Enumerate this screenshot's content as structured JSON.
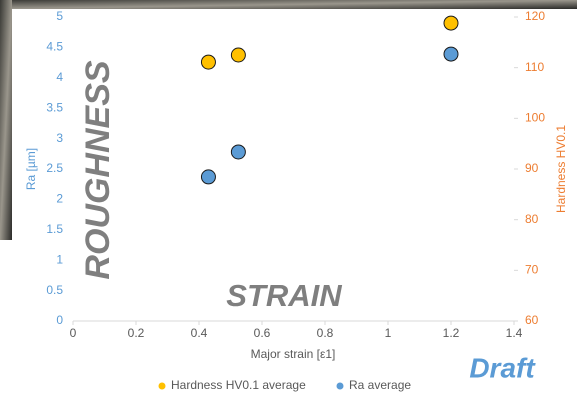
{
  "chart_data": {
    "type": "scatter",
    "x_label": "Major strain [ε1]",
    "y_label": "Ra [µm]",
    "y2_label": "Hardness HV0.1",
    "annotations": [
      "ROUGHNESS",
      "STRAIN",
      "Draft"
    ],
    "xlim": [
      0,
      1.4
    ],
    "xticks": [
      0,
      0.2,
      0.4,
      0.6,
      0.8,
      1,
      1.2,
      1.4
    ],
    "ylim": [
      0,
      5
    ],
    "yticks": [
      0,
      0.5,
      1,
      1.5,
      2,
      2.5,
      3,
      3.5,
      4,
      4.5,
      5
    ],
    "y2lim": [
      60,
      120
    ],
    "y2ticks": [
      60,
      70,
      80,
      90,
      100,
      110,
      120
    ],
    "grid": false,
    "legend": "bottom",
    "series": [
      {
        "name": "Hardness HV0.1 average",
        "color": "#ffc000",
        "axis": "y2",
        "x": [
          0.43,
          0.525,
          1.2
        ],
        "values": [
          111.1,
          112.5,
          118.8
        ]
      },
      {
        "name": "Ra average",
        "color": "#5b9bd5",
        "axis": "y",
        "x": [
          0.43,
          0.525,
          1.2
        ],
        "values": [
          2.37,
          2.78,
          4.39
        ]
      }
    ]
  }
}
